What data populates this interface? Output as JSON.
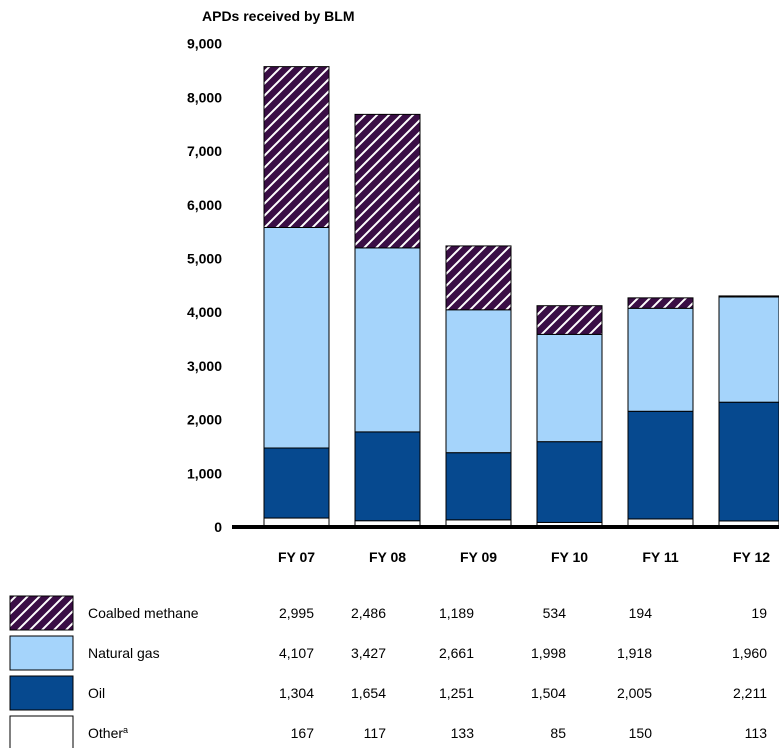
{
  "chart_data": {
    "type": "bar",
    "stacked": true,
    "ylabel": "APDs received by BLM",
    "ylim": [
      0,
      9000
    ],
    "yticks": [
      "0",
      "1,000",
      "2,000",
      "3,000",
      "4,000",
      "5,000",
      "6,000",
      "7,000",
      "8,000",
      "9,000"
    ],
    "categories": [
      "FY 07",
      "FY 08",
      "FY 09",
      "FY 10",
      "FY 11",
      "FY 12"
    ],
    "grid": false,
    "legend_placement": "bottom-table",
    "series": [
      {
        "name": "Other",
        "superscript": "a",
        "color": "#ffffff",
        "pattern": "none",
        "values": [
          167,
          117,
          133,
          85,
          150,
          113
        ],
        "labels": [
          "167",
          "117",
          "133",
          "85",
          "150",
          "113"
        ]
      },
      {
        "name": "Oil",
        "color": "#06498f",
        "pattern": "none",
        "values": [
          1304,
          1654,
          1251,
          1504,
          2005,
          2211
        ],
        "labels": [
          "1,304",
          "1,654",
          "1,251",
          "1,504",
          "2,005",
          "2,211"
        ]
      },
      {
        "name": "Natural gas",
        "color": "#a5d4fb",
        "pattern": "none",
        "values": [
          4107,
          3427,
          2661,
          1998,
          1918,
          1960
        ],
        "labels": [
          "4,107",
          "3,427",
          "2,661",
          "1,998",
          "1,918",
          "1,960"
        ]
      },
      {
        "name": "Coalbed methane",
        "color": "#3a0e45",
        "pattern": "diagonal-hatch",
        "values": [
          2995,
          2486,
          1189,
          534,
          194,
          19
        ],
        "labels": [
          "2,995",
          "2,486",
          "1,189",
          "534",
          "194",
          "19"
        ]
      }
    ]
  }
}
